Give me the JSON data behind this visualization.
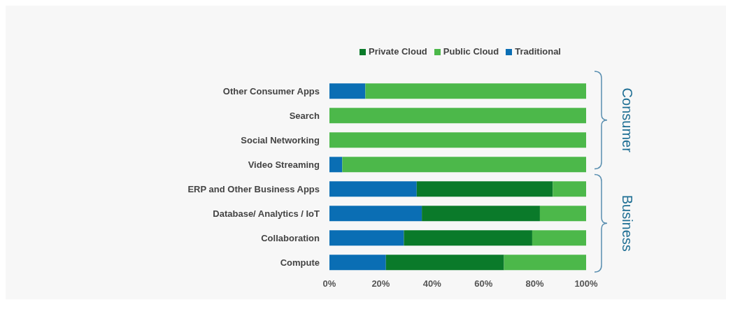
{
  "chart_data": {
    "type": "bar",
    "orientation": "horizontal",
    "stacked": true,
    "categories": [
      "Other Consumer Apps",
      "Search",
      "Social Networking",
      "Video Streaming",
      "ERP and Other Business Apps",
      "Database/ Analytics / IoT",
      "Collaboration",
      "Compute"
    ],
    "series": [
      {
        "name": "Traditional",
        "color": "#0a6eb4",
        "values": [
          14,
          0,
          0,
          5,
          34,
          36,
          29,
          22
        ]
      },
      {
        "name": "Private Cloud",
        "color": "#0a7a2a",
        "values": [
          0,
          0,
          0,
          0,
          53,
          46,
          50,
          46
        ]
      },
      {
        "name": "Public Cloud",
        "color": "#4cb84a",
        "values": [
          86,
          100,
          100,
          95,
          13,
          18,
          21,
          32
        ]
      }
    ],
    "xlim": [
      0,
      100
    ],
    "xticks": [
      {
        "value": 0,
        "label": "0%"
      },
      {
        "value": 20,
        "label": "20%"
      },
      {
        "value": 40,
        "label": "40%"
      },
      {
        "value": 60,
        "label": "60%"
      },
      {
        "value": 80,
        "label": "80%"
      },
      {
        "value": 100,
        "label": "100%"
      }
    ],
    "legend": "top",
    "grid": false,
    "annotations": [
      "Consumer",
      "Business"
    ]
  }
}
